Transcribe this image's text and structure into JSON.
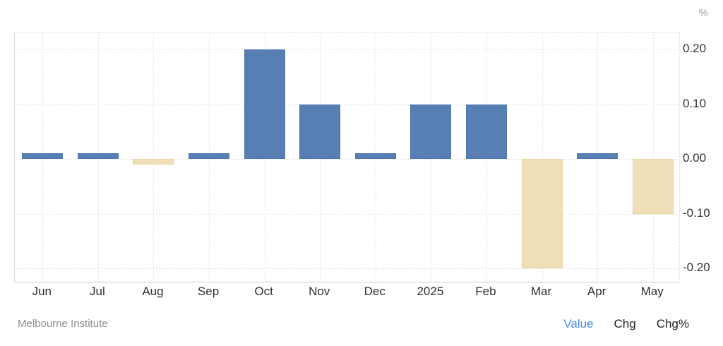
{
  "chart": {
    "unit_label": "%",
    "source": "Melbourne Institute",
    "footer_tabs": [
      {
        "label": "Value",
        "active": true
      },
      {
        "label": "Chg",
        "active": false
      },
      {
        "label": "Chg%",
        "active": false
      }
    ],
    "colors": {
      "positive_bar": "#587fb4",
      "positive_bar_border": "#4d76ab",
      "negative_bar": "#f0deb7",
      "negative_bar_border": "#e9d3a4",
      "grid": "#e2e2e2",
      "axis_text": "#333333",
      "muted_text": "#8e8e8e",
      "active_tab_blue": "#4a8fe2"
    }
  },
  "chart_data": {
    "type": "bar",
    "categories": [
      "Jun",
      "Jul",
      "Aug",
      "Sep",
      "Oct",
      "Nov",
      "Dec",
      "2025",
      "Feb",
      "Mar",
      "Apr",
      "May"
    ],
    "values": [
      0.01,
      0.01,
      -0.01,
      0.01,
      0.2,
      0.1,
      0.01,
      0.1,
      0.1,
      -0.2,
      0.01,
      -0.1
    ],
    "title": "",
    "xlabel": "",
    "ylabel": "%",
    "yticks": [
      0.2,
      0.1,
      0.0,
      -0.1,
      -0.2
    ],
    "ytick_decimals": 2,
    "ylim": [
      -0.227,
      0.231
    ],
    "grid": true,
    "legend": "none",
    "y_axis_position": "right",
    "positive_color": "#587fb4",
    "negative_color": "#f0deb7"
  }
}
